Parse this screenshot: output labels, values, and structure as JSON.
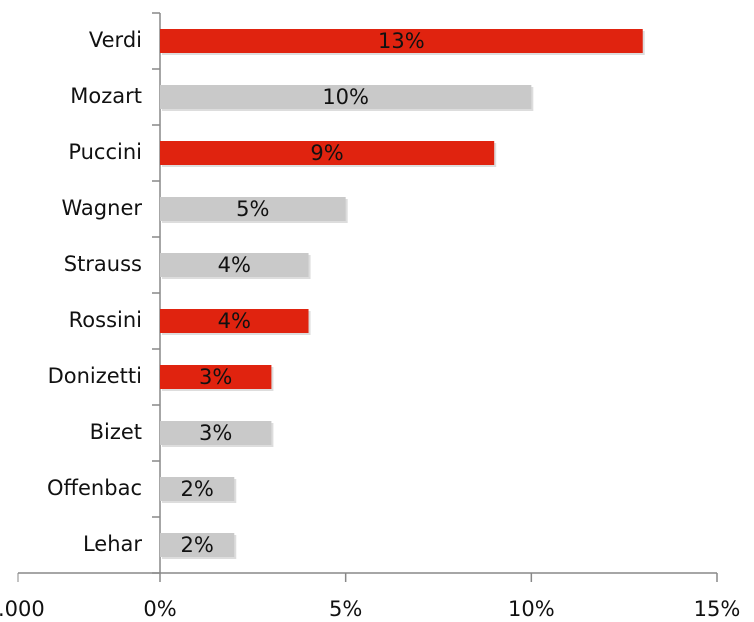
{
  "chart_data": {
    "type": "bar",
    "orientation": "horizontal",
    "categories": [
      "Verdi",
      "Mozart",
      "Puccini",
      "Wagner",
      "Strauss",
      "Rossini",
      "Donizetti",
      "Bizet",
      "Offenbac",
      "Lehar"
    ],
    "values": [
      13,
      10,
      9,
      5,
      4,
      4,
      3,
      3,
      2,
      2
    ],
    "value_labels": [
      "13%",
      "10%",
      "9%",
      "5%",
      "4%",
      "4%",
      "3%",
      "3%",
      "2%",
      "2%"
    ],
    "colors": [
      "#e0230f",
      "#c9c9c9",
      "#e0230f",
      "#c9c9c9",
      "#c9c9c9",
      "#e0230f",
      "#e0230f",
      "#c9c9c9",
      "#c9c9c9",
      "#c9c9c9"
    ],
    "xlim": [
      0,
      15
    ],
    "xticks": [
      {
        "value": 0,
        "label": "0%"
      },
      {
        "value": 5,
        "label": "5%"
      },
      {
        "value": 10,
        "label": "10%"
      },
      {
        "value": 15,
        "label": "15%"
      }
    ],
    "annotations": [
      ".000"
    ]
  }
}
